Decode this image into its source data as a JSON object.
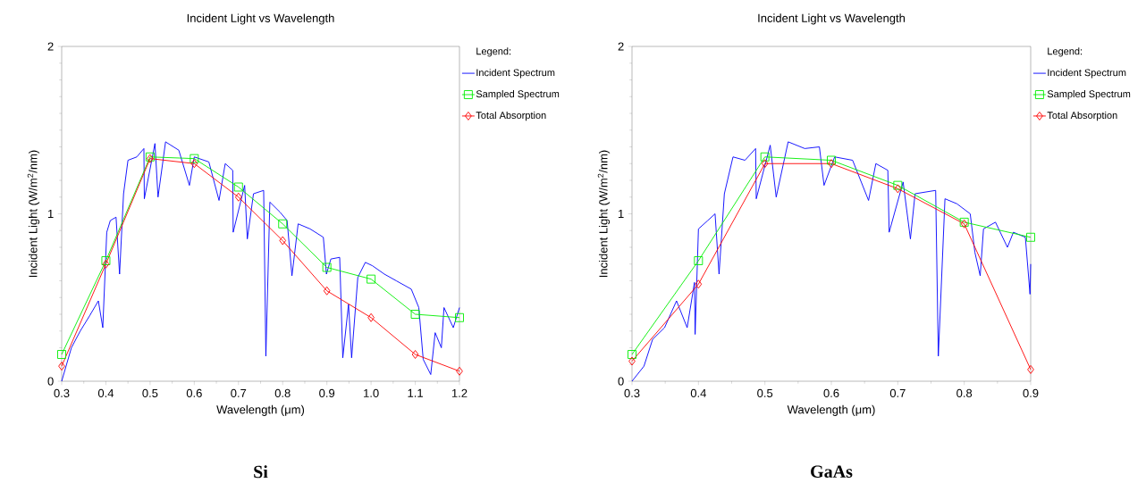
{
  "chart_data": [
    {
      "type": "line",
      "title": "Incident Light vs Wavelength",
      "xlabel": "Wavelength (μm)",
      "ylabel": "Incident Light (W/m$^{2}$/nm)",
      "legend_title": "Legend:",
      "legend": "right",
      "grid": false,
      "xlim": [
        0.3,
        1.2
      ],
      "xticks": [
        0.3,
        0.4,
        0.5,
        0.6,
        0.7,
        0.8,
        0.9,
        {
          "value": 1.0,
          "label": "1.0"
        },
        1.1,
        1.2
      ],
      "ylim": [
        0,
        2
      ],
      "yticks": [
        0,
        1,
        2
      ],
      "annotations": [
        "**Si**"
      ],
      "series": [
        {
          "name": "Incident Spectrum",
          "color": "#0000ff",
          "marker": "none",
          "x": [
            0.3,
            0.322,
            0.342,
            0.363,
            0.383,
            0.393,
            0.402,
            0.41,
            0.423,
            0.431,
            0.44,
            0.45,
            0.47,
            0.486,
            0.487,
            0.511,
            0.518,
            0.535,
            0.565,
            0.589,
            0.6,
            0.633,
            0.656,
            0.67,
            0.687,
            0.688,
            0.714,
            0.72,
            0.734,
            0.757,
            0.762,
            0.771,
            0.794,
            0.81,
            0.821,
            0.835,
            0.862,
            0.892,
            0.899,
            0.909,
            0.929,
            0.936,
            0.949,
            0.956,
            0.97,
            0.987,
            1.003,
            1.03,
            1.057,
            1.091,
            1.108,
            1.118,
            1.135,
            1.145,
            1.159,
            1.165,
            1.186,
            1.2
          ],
          "values": [
            0.0,
            0.2,
            0.3,
            0.39,
            0.48,
            0.32,
            0.89,
            0.96,
            0.98,
            0.64,
            1.12,
            1.32,
            1.34,
            1.39,
            1.09,
            1.42,
            1.1,
            1.43,
            1.38,
            1.17,
            1.34,
            1.31,
            1.08,
            1.3,
            1.26,
            0.89,
            1.17,
            0.85,
            1.12,
            1.14,
            0.15,
            1.07,
            1.01,
            0.96,
            0.63,
            0.94,
            0.91,
            0.86,
            0.64,
            0.73,
            0.74,
            0.14,
            0.46,
            0.14,
            0.62,
            0.71,
            0.69,
            0.64,
            0.6,
            0.55,
            0.44,
            0.13,
            0.04,
            0.29,
            0.2,
            0.44,
            0.32,
            0.44
          ]
        },
        {
          "name": "Sampled Spectrum",
          "color": "#00ee00",
          "marker": "square",
          "x": [
            0.3,
            0.4,
            0.5,
            0.6,
            0.7,
            0.8,
            0.9,
            1.0,
            1.1,
            1.2
          ],
          "values": [
            0.16,
            0.72,
            1.34,
            1.33,
            1.16,
            0.94,
            0.68,
            0.61,
            0.4,
            0.38
          ]
        },
        {
          "name": "Total Absorption",
          "color": "#ff0000",
          "marker": "diamond",
          "x": [
            0.3,
            0.4,
            0.5,
            0.6,
            0.7,
            0.8,
            0.9,
            1.0,
            1.1,
            1.2
          ],
          "values": [
            0.09,
            0.7,
            1.33,
            1.3,
            1.1,
            0.84,
            0.54,
            0.38,
            0.16,
            0.06
          ]
        }
      ]
    },
    {
      "type": "line",
      "title": "Incident Light vs Wavelength",
      "xlabel": "Wavelength (μm)",
      "ylabel": "Incident Light (W/m$^{2}$/nm)",
      "legend_title": "Legend:",
      "legend": "right",
      "grid": false,
      "xlim": [
        0.3,
        0.9
      ],
      "xticks": [
        0.3,
        0.4,
        0.5,
        0.6,
        0.7,
        0.8,
        0.9
      ],
      "ylim": [
        0,
        2
      ],
      "yticks": [
        0,
        1,
        2
      ],
      "annotations": [
        "**GaAs**"
      ],
      "series": [
        {
          "name": "Incident Spectrum",
          "color": "#0000ff",
          "marker": "none",
          "x": [
            0.3,
            0.318,
            0.331,
            0.349,
            0.367,
            0.383,
            0.394,
            0.395,
            0.4,
            0.414,
            0.425,
            0.431,
            0.439,
            0.452,
            0.47,
            0.486,
            0.487,
            0.508,
            0.517,
            0.535,
            0.56,
            0.582,
            0.589,
            0.605,
            0.632,
            0.656,
            0.667,
            0.685,
            0.687,
            0.708,
            0.719,
            0.726,
            0.757,
            0.761,
            0.771,
            0.789,
            0.809,
            0.816,
            0.824,
            0.829,
            0.847,
            0.865,
            0.874,
            0.892,
            0.899,
            0.9
          ],
          "values": [
            0.0,
            0.09,
            0.25,
            0.32,
            0.48,
            0.32,
            0.59,
            0.28,
            0.91,
            0.96,
            1.0,
            0.64,
            1.12,
            1.34,
            1.32,
            1.39,
            1.09,
            1.41,
            1.1,
            1.43,
            1.39,
            1.4,
            1.17,
            1.34,
            1.32,
            1.08,
            1.3,
            1.26,
            0.89,
            1.19,
            0.85,
            1.12,
            1.14,
            0.15,
            1.09,
            1.06,
            1.0,
            0.77,
            0.63,
            0.91,
            0.95,
            0.8,
            0.89,
            0.86,
            0.52,
            0.7
          ]
        },
        {
          "name": "Sampled Spectrum",
          "color": "#00ee00",
          "marker": "square",
          "x": [
            0.3,
            0.4,
            0.5,
            0.6,
            0.7,
            0.8,
            0.9
          ],
          "values": [
            0.16,
            0.72,
            1.34,
            1.32,
            1.17,
            0.95,
            0.86
          ]
        },
        {
          "name": "Total Absorption",
          "color": "#ff0000",
          "marker": "diamond",
          "x": [
            0.3,
            0.4,
            0.5,
            0.6,
            0.7,
            0.8,
            0.9
          ],
          "values": [
            0.12,
            0.58,
            1.3,
            1.3,
            1.15,
            0.94,
            0.07
          ]
        }
      ]
    }
  ]
}
